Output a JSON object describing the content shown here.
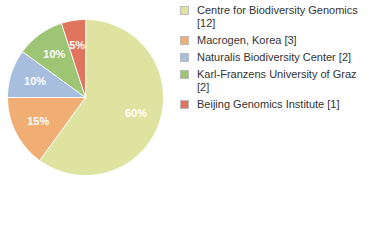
{
  "chart_data": {
    "type": "pie",
    "categories": [
      "Centre for Biodiversity Genomics [12]",
      "Macrogen, Korea [3]",
      "Naturalis Biodiversity Center [2]",
      "Karl-Franzens University of Graz [2]",
      "Beijing Genomics Institute [1]"
    ],
    "values": [
      60,
      15,
      10,
      10,
      5
    ],
    "value_labels": [
      "60%",
      "15%",
      "10%",
      "10%",
      "5%"
    ],
    "data_labels": true,
    "colors": [
      "#dfe3a0",
      "#f0ad74",
      "#a8bedf",
      "#9ec574",
      "#e0745e"
    ],
    "legend": "right"
  }
}
